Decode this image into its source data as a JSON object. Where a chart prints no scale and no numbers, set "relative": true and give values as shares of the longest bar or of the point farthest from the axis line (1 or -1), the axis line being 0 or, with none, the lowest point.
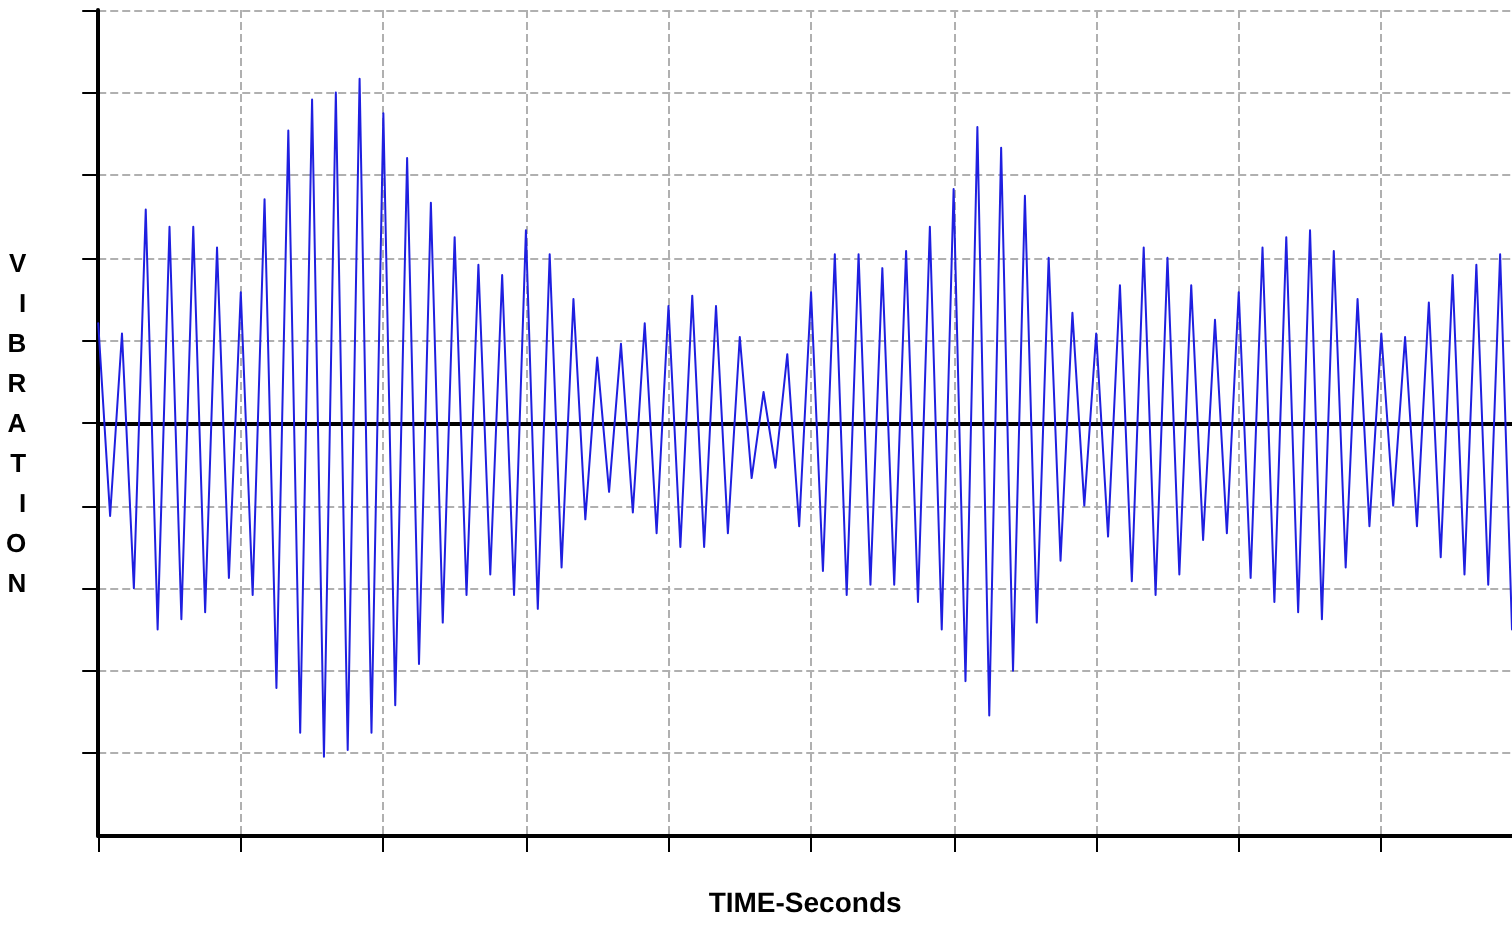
{
  "chart_data": {
    "type": "line",
    "xlabel": "TIME-Seconds",
    "ylabel": "VIBRATION",
    "relative": true,
    "grid": true,
    "line_style": "solid",
    "tick_labels": false,
    "categories": [
      null,
      null,
      null,
      null,
      null,
      null,
      null,
      null,
      null,
      null,
      null,
      null,
      null,
      null,
      null,
      null,
      null,
      null,
      null,
      null,
      null,
      null,
      null,
      null,
      null,
      null,
      null,
      null,
      null,
      null,
      null,
      null,
      null,
      null,
      null,
      null,
      null,
      null,
      null,
      null,
      null,
      null,
      null,
      null,
      null,
      null,
      null,
      null,
      null,
      null,
      null,
      null,
      null,
      null,
      null,
      null,
      null,
      null,
      null,
      null,
      null,
      null,
      null,
      null,
      null,
      null,
      null,
      null,
      null,
      null,
      null,
      null,
      null,
      null,
      null,
      null,
      null,
      null,
      null,
      null,
      null,
      null,
      null,
      null,
      null,
      null,
      null,
      null,
      null,
      null,
      null,
      null,
      null,
      null,
      null,
      null,
      null,
      null,
      null,
      null,
      null,
      null,
      null,
      null,
      null,
      null,
      null,
      null,
      null,
      null,
      null,
      null,
      null,
      null,
      null,
      null,
      null,
      null,
      null,
      null
    ],
    "series": [
      {
        "color": "#1f1fe0",
        "values": [
          0.29,
          -0.27,
          0.26,
          -0.48,
          0.62,
          -0.6,
          0.57,
          -0.57,
          0.57,
          -0.55,
          0.51,
          -0.45,
          0.38,
          -0.5,
          0.65,
          -0.77,
          0.85,
          -0.9,
          0.94,
          -0.97,
          0.96,
          -0.95,
          1.0,
          -0.9,
          0.9,
          -0.82,
          0.77,
          -0.7,
          0.64,
          -0.58,
          0.54,
          -0.5,
          0.46,
          -0.44,
          0.43,
          -0.5,
          0.56,
          -0.54,
          0.49,
          -0.42,
          0.36,
          -0.28,
          0.19,
          -0.2,
          0.23,
          -0.26,
          0.29,
          -0.32,
          0.34,
          -0.36,
          0.37,
          -0.36,
          0.34,
          -0.32,
          0.25,
          -0.16,
          0.09,
          -0.13,
          0.2,
          -0.3,
          0.38,
          -0.43,
          0.49,
          -0.5,
          0.49,
          -0.47,
          0.45,
          -0.47,
          0.5,
          -0.52,
          0.57,
          -0.6,
          0.68,
          -0.75,
          0.86,
          -0.85,
          0.8,
          -0.72,
          0.66,
          -0.58,
          0.48,
          -0.4,
          0.32,
          -0.24,
          0.26,
          -0.33,
          0.4,
          -0.46,
          0.51,
          -0.5,
          0.48,
          -0.44,
          0.4,
          -0.34,
          0.3,
          -0.32,
          0.38,
          -0.45,
          0.51,
          -0.52,
          0.54,
          -0.55,
          0.56,
          -0.57,
          0.5,
          -0.42,
          0.36,
          -0.3,
          0.26,
          -0.24,
          0.25,
          -0.3,
          0.35,
          -0.39,
          0.43,
          -0.44,
          0.46,
          -0.47,
          0.49,
          -0.6
        ]
      }
    ]
  }
}
